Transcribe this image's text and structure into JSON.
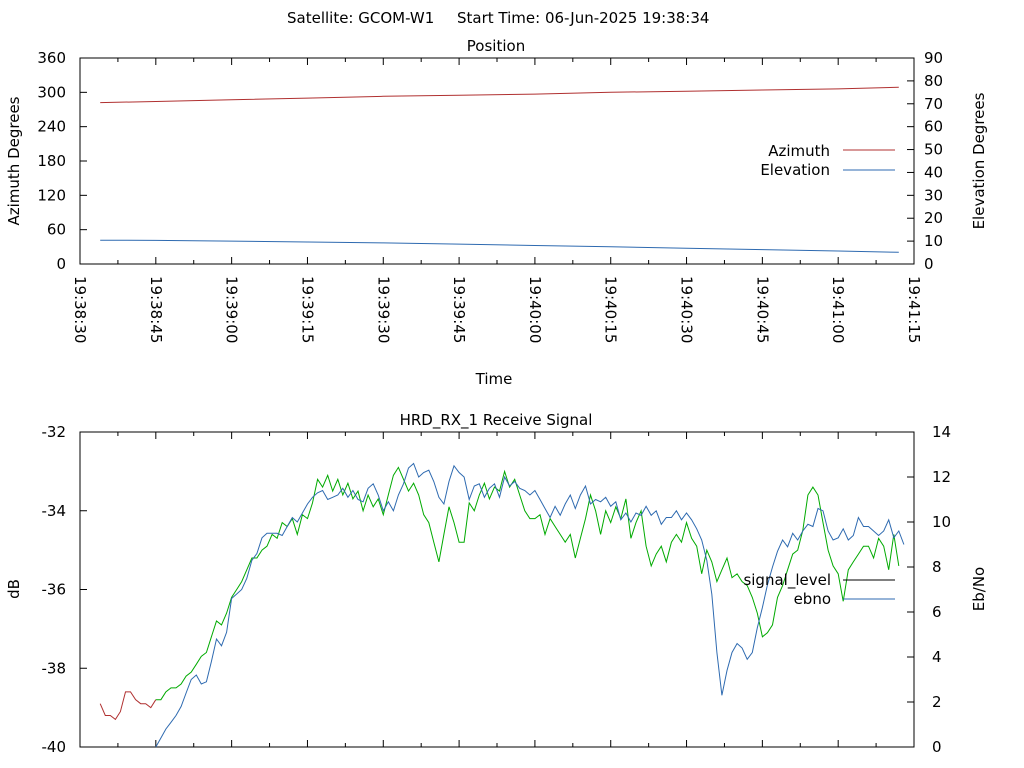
{
  "header": {
    "satellite": "Satellite: GCOM-W1",
    "start_time": "Start Time: 06-Jun-2025 19:38:34"
  },
  "chart_data": [
    {
      "type": "line",
      "title": "Position",
      "xlabel": "Time",
      "ylabel_left": "Azimuth Degrees",
      "ylabel_right": "Elevation Degrees",
      "xlim": [
        "19:38:30",
        "19:41:15"
      ],
      "x_ticks": [
        "19:38:30",
        "19:38:45",
        "19:39:00",
        "19:39:15",
        "19:39:30",
        "19:39:45",
        "19:40:00",
        "19:40:15",
        "19:40:30",
        "19:40:45",
        "19:41:00",
        "19:41:15"
      ],
      "ylim_left": [
        0,
        360
      ],
      "y_ticks_left": [
        "0",
        "60",
        "120",
        "180",
        "240",
        "300",
        "360"
      ],
      "ylim_right": [
        0,
        90
      ],
      "y_ticks_right": [
        "0",
        "10",
        "20",
        "30",
        "40",
        "50",
        "60",
        "70",
        "80",
        "90"
      ],
      "grid": false,
      "legend_position": "right",
      "series": [
        {
          "name": "Azimuth",
          "axis": "left",
          "color": "#b03030",
          "x": [
            "19:38:34",
            "19:38:45",
            "19:39:00",
            "19:39:15",
            "19:39:30",
            "19:39:45",
            "19:40:00",
            "19:40:15",
            "19:40:30",
            "19:40:45",
            "19:41:00",
            "19:41:12"
          ],
          "y": [
            282,
            284,
            287,
            290,
            293,
            295,
            297,
            300,
            302,
            304,
            306,
            309
          ]
        },
        {
          "name": "Elevation",
          "axis": "right",
          "color": "#2e6ab0",
          "x": [
            "19:38:34",
            "19:38:45",
            "19:39:00",
            "19:39:15",
            "19:39:30",
            "19:39:45",
            "19:40:00",
            "19:40:15",
            "19:40:30",
            "19:40:45",
            "19:41:00",
            "19:41:12"
          ],
          "y": [
            10.4,
            10.3,
            10.0,
            9.6,
            9.2,
            8.7,
            8.1,
            7.5,
            6.9,
            6.3,
            5.7,
            5.1
          ]
        }
      ]
    },
    {
      "type": "line",
      "title": "HRD_RX_1 Receive Signal",
      "ylabel_left": "dB",
      "ylabel_right": "Eb/No",
      "x_range_seconds": [
        0,
        165
      ],
      "ylim_left": [
        -40,
        -32
      ],
      "y_ticks_left": [
        "-40",
        "-38",
        "-36",
        "-34",
        "-32"
      ],
      "ylim_right": [
        0,
        14
      ],
      "y_ticks_right": [
        "0",
        "2",
        "4",
        "6",
        "8",
        "10",
        "12",
        "14"
      ],
      "grid": false,
      "legend_position": "right",
      "legend": [
        {
          "name": "signal_level",
          "color": "#000000"
        },
        {
          "name": "ebno",
          "color": "#2e6ab0"
        }
      ],
      "series": [
        {
          "name": "signal_level",
          "axis": "left",
          "color_early": "#b03030",
          "color": "#00aa00",
          "x": [
            4,
            5,
            6,
            7,
            8,
            9,
            10,
            11,
            12,
            13,
            14,
            15,
            16,
            17,
            18,
            19,
            20,
            21,
            22,
            23,
            24,
            25,
            26,
            27,
            28,
            29,
            30,
            31,
            32,
            33,
            34,
            35,
            36,
            37,
            38,
            39,
            40,
            41,
            42,
            43,
            44,
            45,
            46,
            47,
            48,
            49,
            50,
            51,
            52,
            53,
            54,
            55,
            56,
            57,
            58,
            59,
            60,
            61,
            62,
            63,
            64,
            65,
            66,
            67,
            68,
            69,
            70,
            71,
            72,
            73,
            74,
            75,
            76,
            77,
            78,
            79,
            80,
            81,
            82,
            83,
            84,
            85,
            86,
            87,
            88,
            89,
            90,
            91,
            92,
            93,
            94,
            95,
            96,
            97,
            98,
            99,
            100,
            101,
            102,
            103,
            104,
            105,
            106,
            107,
            108,
            109,
            110,
            111,
            112,
            113,
            114,
            115,
            116,
            117,
            118,
            119,
            120,
            121,
            122,
            123,
            124,
            125,
            126,
            127,
            128,
            129,
            130,
            131,
            132,
            133,
            134,
            135,
            136,
            137,
            138,
            139,
            140,
            141,
            142,
            143,
            144,
            145,
            146,
            147,
            148,
            149,
            150,
            151,
            152,
            153,
            154,
            155,
            156,
            157,
            158,
            159,
            160,
            161,
            162
          ],
          "y": [
            -38.9,
            -39.2,
            -39.2,
            -39.3,
            -39.1,
            -38.6,
            -38.6,
            -38.8,
            -38.9,
            -38.9,
            -39.0,
            -38.8,
            -38.8,
            -38.6,
            -38.5,
            -38.5,
            -38.4,
            -38.2,
            -38.1,
            -37.9,
            -37.7,
            -37.6,
            -37.2,
            -36.8,
            -36.9,
            -36.6,
            -36.2,
            -36.0,
            -35.8,
            -35.5,
            -35.2,
            -35.2,
            -35.0,
            -34.9,
            -34.6,
            -34.7,
            -34.3,
            -34.4,
            -34.2,
            -34.6,
            -34.1,
            -34.2,
            -33.8,
            -33.2,
            -33.4,
            -33.1,
            -33.5,
            -33.2,
            -33.6,
            -33.3,
            -33.7,
            -33.5,
            -34.0,
            -33.6,
            -33.9,
            -33.7,
            -34.1,
            -33.6,
            -33.1,
            -32.9,
            -33.2,
            -33.5,
            -33.3,
            -33.6,
            -34.1,
            -34.3,
            -34.8,
            -35.3,
            -34.6,
            -33.9,
            -34.3,
            -34.8,
            -34.8,
            -33.8,
            -34.0,
            -33.6,
            -33.3,
            -33.7,
            -33.4,
            -33.5,
            -33.0,
            -33.4,
            -33.2,
            -33.6,
            -34.0,
            -34.2,
            -34.2,
            -34.1,
            -34.6,
            -34.2,
            -34.4,
            -34.6,
            -34.8,
            -34.6,
            -35.2,
            -34.7,
            -34.2,
            -33.6,
            -34.0,
            -34.6,
            -34.0,
            -34.3,
            -33.9,
            -34.2,
            -33.7,
            -34.7,
            -34.3,
            -34.0,
            -34.9,
            -35.4,
            -35.1,
            -34.9,
            -35.3,
            -34.8,
            -34.6,
            -34.8,
            -34.3,
            -34.7,
            -34.9,
            -35.6,
            -35.0,
            -35.3,
            -35.8,
            -35.5,
            -35.2,
            -35.7,
            -35.6,
            -35.8,
            -35.9,
            -36.2,
            -36.6,
            -37.2,
            -37.1,
            -36.9,
            -36.2,
            -35.9,
            -35.5,
            -35.1,
            -35.0,
            -34.5,
            -33.6,
            -33.4,
            -33.6,
            -34.3,
            -35.0,
            -35.4,
            -35.6,
            -36.3,
            -35.5,
            -35.3,
            -35.1,
            -34.9,
            -34.9,
            -35.2,
            -34.7,
            -34.9,
            -35.5,
            -34.6,
            -35.4
          ]
        },
        {
          "name": "ebno",
          "axis": "right",
          "color": "#2e6ab0",
          "x": [
            15,
            16,
            17,
            18,
            19,
            20,
            21,
            22,
            23,
            24,
            25,
            26,
            27,
            28,
            29,
            30,
            31,
            32,
            33,
            34,
            35,
            36,
            37,
            38,
            39,
            40,
            41,
            42,
            43,
            44,
            45,
            46,
            47,
            48,
            49,
            50,
            51,
            52,
            53,
            54,
            55,
            56,
            57,
            58,
            59,
            60,
            61,
            62,
            63,
            64,
            65,
            66,
            67,
            68,
            69,
            70,
            71,
            72,
            73,
            74,
            75,
            76,
            77,
            78,
            79,
            80,
            81,
            82,
            83,
            84,
            85,
            86,
            87,
            88,
            89,
            90,
            91,
            92,
            93,
            94,
            95,
            96,
            97,
            98,
            99,
            100,
            101,
            102,
            103,
            104,
            105,
            106,
            107,
            108,
            109,
            110,
            111,
            112,
            113,
            114,
            115,
            116,
            117,
            118,
            119,
            120,
            121,
            122,
            123,
            124,
            125,
            126,
            127,
            128,
            129,
            130,
            131,
            132,
            133,
            134,
            135,
            136,
            137,
            138,
            139,
            140,
            141,
            142,
            143,
            144,
            145,
            146,
            147,
            148,
            149,
            150,
            151,
            152,
            153,
            154,
            155,
            156,
            157,
            158,
            159,
            160,
            161,
            162,
            163
          ],
          "y": [
            0.0,
            0.4,
            0.8,
            1.1,
            1.4,
            1.8,
            2.4,
            3.0,
            3.2,
            2.8,
            2.9,
            3.8,
            4.8,
            4.5,
            5.1,
            6.6,
            6.8,
            7.0,
            7.5,
            8.3,
            8.6,
            9.3,
            9.5,
            9.5,
            9.5,
            9.4,
            9.8,
            10.2,
            10.0,
            10.4,
            10.8,
            11.1,
            11.3,
            11.4,
            11.0,
            11.1,
            11.2,
            11.5,
            11.1,
            11.4,
            11.0,
            10.9,
            11.5,
            11.7,
            11.2,
            10.5,
            10.9,
            10.5,
            11.2,
            11.7,
            12.4,
            12.6,
            12.0,
            12.2,
            12.3,
            11.8,
            11.1,
            10.8,
            11.8,
            12.5,
            12.2,
            12.0,
            11.0,
            11.6,
            11.7,
            11.1,
            11.5,
            11.7,
            11.1,
            12.0,
            11.6,
            11.8,
            11.5,
            11.4,
            11.2,
            11.4,
            11.0,
            10.6,
            10.2,
            10.7,
            10.3,
            10.8,
            11.2,
            10.6,
            11.2,
            11.6,
            10.8,
            11.0,
            10.9,
            11.1,
            10.7,
            10.9,
            10.1,
            10.4,
            10.0,
            10.4,
            10.3,
            10.7,
            10.3,
            10.5,
            9.9,
            10.2,
            10.2,
            10.5,
            10.1,
            10.4,
            10.1,
            9.7,
            9.2,
            8.3,
            6.8,
            4.2,
            2.3,
            3.4,
            4.2,
            4.6,
            4.4,
            3.9,
            4.2,
            5.3,
            6.2,
            7.2,
            8.0,
            8.7,
            9.2,
            8.9,
            9.5,
            9.2,
            9.6,
            9.9,
            9.8,
            10.6,
            10.5,
            9.6,
            9.2,
            9.3,
            9.7,
            9.2,
            9.4,
            10.2,
            9.8,
            9.8,
            9.6,
            9.4,
            9.6,
            10.1,
            9.3,
            9.6,
            9.0
          ]
        }
      ]
    }
  ]
}
